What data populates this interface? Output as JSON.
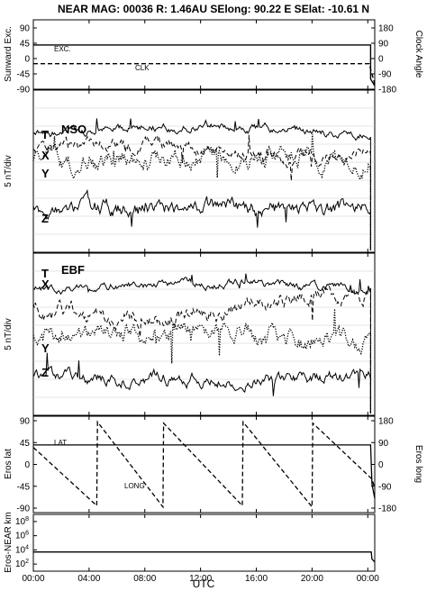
{
  "header": {
    "title": "NEAR MAG: 00036  R: 1.46AU  SElong:   90.22 E  SElat:  -10.61 N"
  },
  "xaxis": {
    "label": "UTC",
    "ticks": [
      "00:00",
      "04:00",
      "08:00",
      "12:00",
      "16:00",
      "20:00",
      "00:00"
    ]
  },
  "chart_data": [
    {
      "type": "line",
      "panel": "sunward",
      "ylabel_left": "Sunward Exc.",
      "ylabel_right": "Clock Angle",
      "left_ticks": [
        "90",
        "45",
        "0",
        "-45",
        "-90"
      ],
      "right_ticks": [
        "180",
        "90",
        "0",
        "-90",
        "-180"
      ],
      "ylim_left": [
        -90,
        90
      ],
      "ylim_right": [
        -180,
        180
      ],
      "xlim_hours": [
        0,
        24.5
      ],
      "annotations": [
        "EXC.",
        "CLK"
      ],
      "series": [
        {
          "name": "EXC.",
          "style": "solid",
          "x": [
            0,
            24.2,
            24.2,
            24.5
          ],
          "y": [
            40,
            40,
            -60,
            -80
          ]
        },
        {
          "name": "CLK",
          "style": "dashed",
          "axis": "right",
          "x": [
            0,
            24.1,
            24.3,
            24.5
          ],
          "y": [
            -30,
            -30,
            -90,
            -150
          ]
        }
      ]
    },
    {
      "type": "line",
      "panel": "NSO",
      "tag": "NSO",
      "ylabel_left": "5 nT/div",
      "component_labels": [
        "T",
        "X",
        "Y",
        "Z"
      ],
      "scale": "5 nT/div",
      "series": [
        {
          "name": "T",
          "style": "solid"
        },
        {
          "name": "X",
          "style": "dashed"
        },
        {
          "name": "Y",
          "style": "dotted"
        },
        {
          "name": "Z",
          "style": "solid"
        }
      ]
    },
    {
      "type": "line",
      "panel": "EBF",
      "tag": "EBF",
      "ylabel_left": "5 nT/div",
      "component_labels": [
        "T",
        "X",
        "Y",
        "Z"
      ],
      "scale": "5 nT/div",
      "series": [
        {
          "name": "T",
          "style": "solid"
        },
        {
          "name": "X",
          "style": "dashed"
        },
        {
          "name": "Y",
          "style": "dotted"
        },
        {
          "name": "Z",
          "style": "solid"
        }
      ]
    },
    {
      "type": "line",
      "panel": "eros",
      "ylabel_left": "Eros lat",
      "ylabel_right": "Eros long",
      "left_ticks": [
        "90",
        "45",
        "0",
        "-45",
        "-90"
      ],
      "right_ticks": [
        "180",
        "90",
        "0",
        "-90",
        "-180"
      ],
      "ylim_left": [
        -90,
        90
      ],
      "ylim_right": [
        -180,
        180
      ],
      "annotations": [
        "LAT",
        "LONG"
      ],
      "series": [
        {
          "name": "LAT",
          "style": "solid",
          "x": [
            0,
            24.2,
            24.3,
            24.5
          ],
          "y": [
            40,
            40,
            -40,
            -70
          ]
        },
        {
          "name": "LONG",
          "style": "dashed",
          "axis": "right",
          "x": [
            0,
            4.55,
            4.6,
            9.3,
            9.35,
            15.0,
            15.05,
            20.0,
            20.05,
            24.3,
            24.5
          ],
          "y": [
            70,
            -170,
            175,
            -175,
            170,
            -170,
            175,
            -175,
            170,
            -60,
            -100
          ]
        }
      ]
    },
    {
      "type": "line",
      "panel": "distance",
      "ylabel_left": "Eros-NEAR km",
      "left_ticks": [
        "10^8",
        "10^6",
        "10^4",
        "10^2"
      ],
      "log_scale": true,
      "ylim": [
        10,
        1000000000
      ],
      "series": [
        {
          "name": "distance",
          "style": "solid",
          "x": [
            0,
            24.25,
            24.3,
            24.5
          ],
          "y": [
            5000,
            5000,
            500,
            200
          ]
        }
      ]
    }
  ]
}
